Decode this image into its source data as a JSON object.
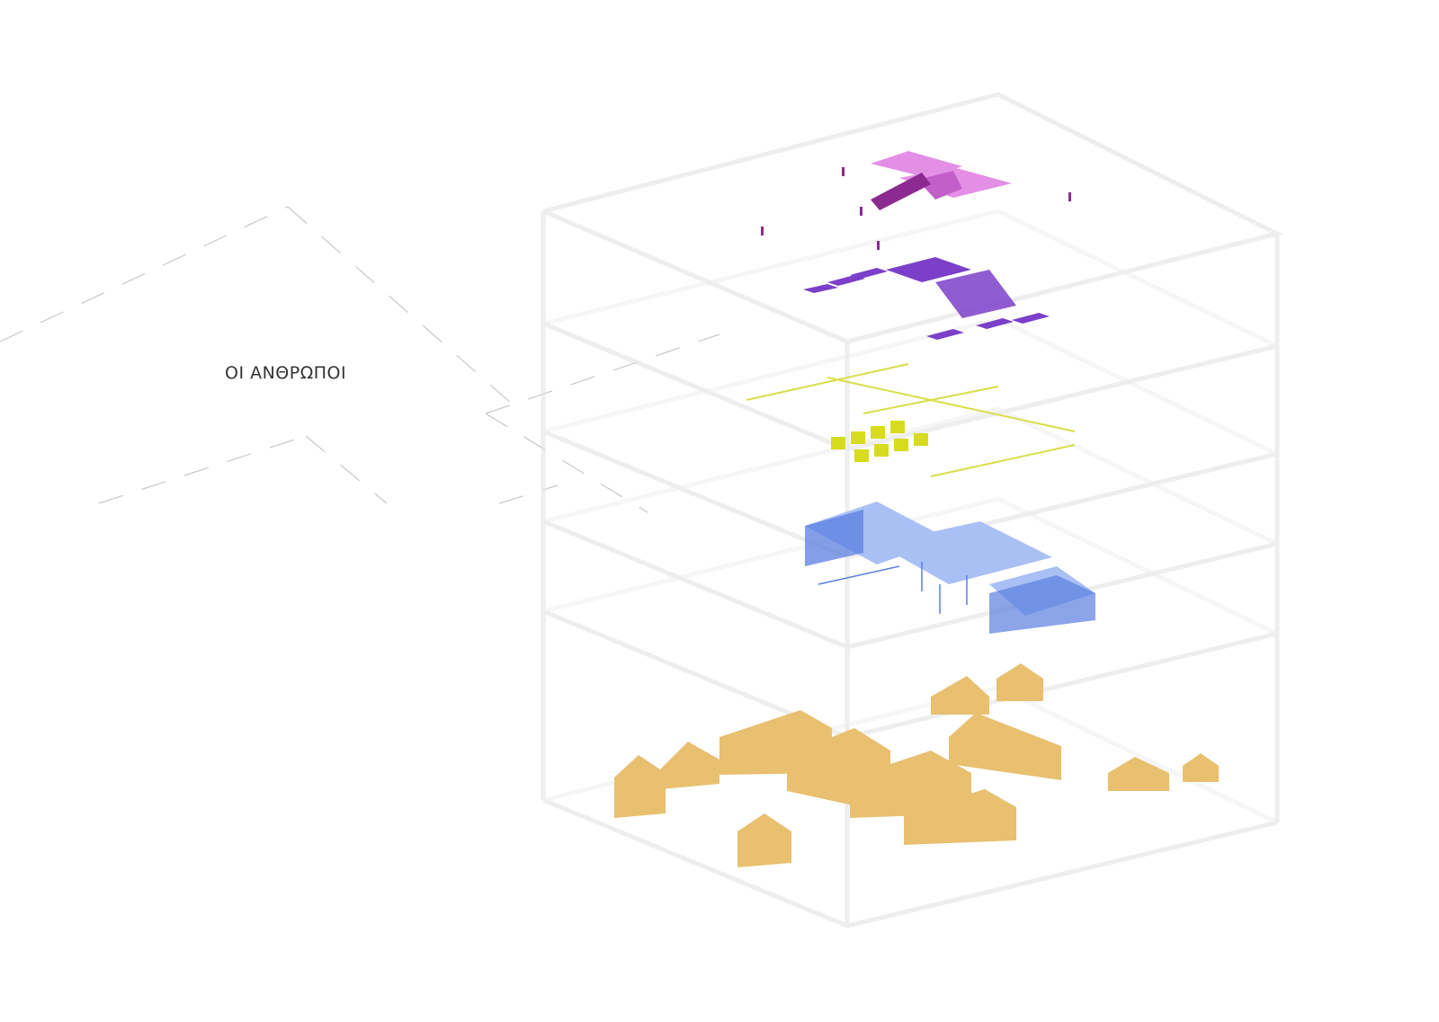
{
  "diagram": {
    "type": "exploded-axonometric",
    "layers": [
      {
        "id": "layer-1",
        "label": "",
        "color": "#e38fe6"
      },
      {
        "id": "layer-2",
        "label": "",
        "color": "#7b3fc9"
      },
      {
        "id": "layer-3",
        "label": "ΟΙ ΑΝΘΡΩΠΟΙ",
        "color": "#d9de4a"
      },
      {
        "id": "layer-4",
        "label": "",
        "color": "#5b7fe0"
      },
      {
        "id": "layer-5",
        "label": "",
        "color": "#e8c070"
      }
    ],
    "colors": {
      "layer_1": "#e38fe6",
      "layer_1_dark": "#8b2a90",
      "layer_2": "#7b3fc9",
      "layer_3": "#d9de4a",
      "layer_3_block": "#d7dc1e",
      "layer_4": "#5b7fe0",
      "layer_4_light": "#a9c0f5",
      "layer_5": "#e8c070",
      "layer_5_dark": "#d9ab55",
      "frame": "#e3e3e3"
    }
  }
}
